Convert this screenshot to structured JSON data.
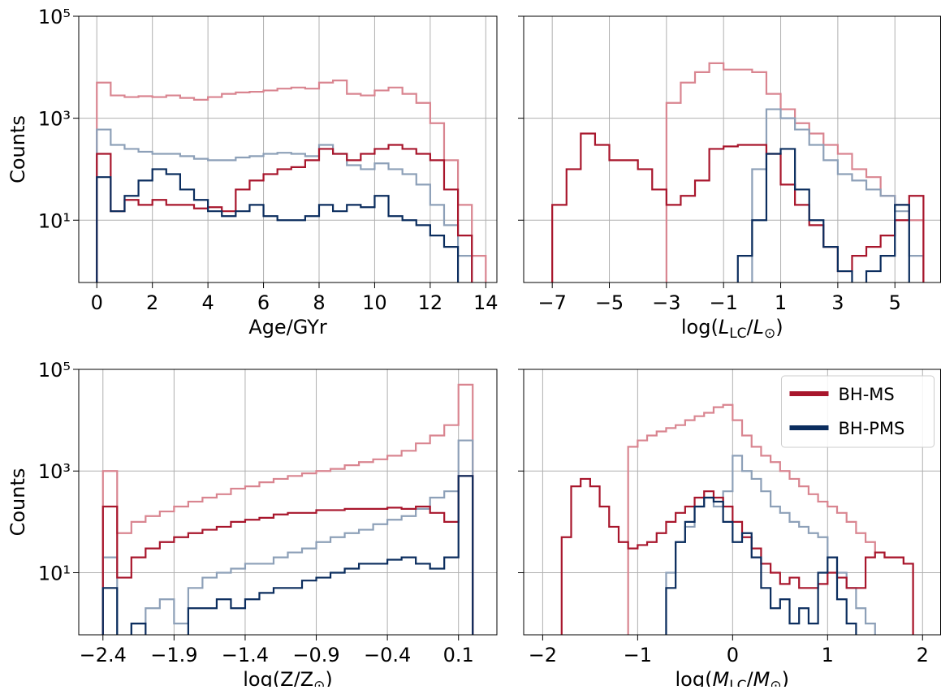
{
  "chart_data": [
    {
      "type": "histogram",
      "xlabel": [
        {
          "text": "Age/GYr"
        }
      ],
      "ylabel": "Counts",
      "log_y": true,
      "grid": true,
      "xlim": [
        -0.65,
        14.4
      ],
      "ylim": [
        0.6,
        100000
      ],
      "xticks": [
        0,
        2,
        4,
        6,
        8,
        10,
        12,
        14
      ],
      "yticks": [
        {
          "value": 10,
          "label": "10¹"
        },
        {
          "value": 1000,
          "label": "10³"
        },
        {
          "value": 100000,
          "label": "10⁵"
        }
      ],
      "bins": [
        0,
        0.5,
        1,
        1.5,
        2,
        2.5,
        3,
        3.5,
        4,
        4.5,
        5,
        5.5,
        6,
        6.5,
        7,
        7.5,
        8,
        8.5,
        9,
        9.5,
        10,
        10.5,
        11,
        11.5,
        12,
        12.5,
        13,
        13.5,
        14
      ],
      "series": [
        {
          "color": "#d98590",
          "values": [
            5000,
            2800,
            2600,
            2700,
            2600,
            2800,
            2500,
            2300,
            2600,
            3000,
            3200,
            3300,
            3500,
            3800,
            4000,
            3800,
            5000,
            5500,
            3000,
            2800,
            3500,
            4000,
            3000,
            2000,
            800,
            150,
            20,
            2
          ]
        },
        {
          "color": "#8da0b8",
          "values": [
            600,
            300,
            250,
            220,
            200,
            200,
            180,
            160,
            150,
            150,
            170,
            180,
            200,
            210,
            200,
            180,
            300,
            200,
            120,
            100,
            130,
            100,
            80,
            50,
            20,
            8,
            2,
            0
          ]
        },
        {
          "color": "#a8162c",
          "values": [
            200,
            15,
            25,
            20,
            25,
            20,
            20,
            17,
            18,
            15,
            40,
            60,
            80,
            100,
            110,
            150,
            250,
            200,
            150,
            200,
            250,
            300,
            250,
            200,
            150,
            40,
            5,
            0
          ]
        },
        {
          "color": "#0b2d5e",
          "values": [
            70,
            15,
            30,
            60,
            100,
            80,
            40,
            25,
            15,
            12,
            15,
            20,
            12,
            10,
            10,
            12,
            20,
            15,
            20,
            18,
            30,
            12,
            10,
            8,
            5,
            3,
            0,
            0
          ]
        }
      ]
    },
    {
      "type": "histogram",
      "xlabel": [
        {
          "text": "log("
        },
        {
          "text": "L",
          "italic": true
        },
        {
          "text": "LC",
          "sub": true
        },
        {
          "text": "/"
        },
        {
          "text": "L",
          "italic": true
        },
        {
          "text": "⊙",
          "sub": true
        },
        {
          "text": ")"
        }
      ],
      "log_y": true,
      "grid": true,
      "xlim": [
        -8.0,
        6.6
      ],
      "ylim": [
        0.6,
        100000
      ],
      "xticks": [
        {
          "value": -7,
          "label": "−7"
        },
        {
          "value": -5,
          "label": "−5"
        },
        {
          "value": -3,
          "label": "−3"
        },
        {
          "value": -1,
          "label": "−1"
        },
        1,
        3,
        5
      ],
      "yticks": [
        10,
        1000,
        100000
      ],
      "bins": [
        -7,
        -6.5,
        -6,
        -5.5,
        -5,
        -4.5,
        -4,
        -3.5,
        -3,
        -2.5,
        -2,
        -1.5,
        -1,
        -0.5,
        0,
        0.5,
        1,
        1.5,
        2,
        2.5,
        3,
        3.5,
        4,
        4.5,
        5,
        5.5,
        6
      ],
      "series": [
        {
          "color": "#d98590",
          "values": [
            0,
            0,
            0,
            0,
            0,
            0,
            0,
            0,
            2000,
            5000,
            8000,
            12000,
            9000,
            9000,
            8000,
            3000,
            1500,
            800,
            500,
            300,
            200,
            100,
            70,
            30,
            20,
            10
          ]
        },
        {
          "color": "#8da0b8",
          "values": [
            0,
            0,
            0,
            0,
            0,
            0,
            0,
            0,
            0,
            0,
            0,
            0,
            0,
            0,
            100,
            1500,
            1000,
            600,
            300,
            150,
            80,
            60,
            40,
            30,
            15,
            2
          ]
        },
        {
          "color": "#a8162c",
          "values": [
            20,
            100,
            500,
            300,
            150,
            150,
            100,
            40,
            20,
            30,
            60,
            250,
            280,
            300,
            300,
            200,
            50,
            20,
            8,
            3,
            1,
            2,
            3,
            5,
            10,
            30
          ]
        },
        {
          "color": "#0b2d5e",
          "values": [
            0,
            0,
            0,
            0,
            0,
            0,
            0,
            0,
            0,
            0,
            0,
            0,
            0,
            2,
            10,
            200,
            250,
            40,
            10,
            3,
            1,
            0.5,
            1,
            2,
            20,
            0
          ]
        }
      ]
    },
    {
      "type": "histogram",
      "xlabel": [
        {
          "text": "log(Z/Z"
        },
        {
          "text": "⊙",
          "sub": true
        },
        {
          "text": ")"
        }
      ],
      "ylabel": "Counts",
      "log_y": true,
      "grid": true,
      "xlim": [
        -2.57,
        0.37
      ],
      "ylim": [
        0.6,
        100000
      ],
      "xticks": [
        {
          "value": -2.4,
          "label": "−2.4"
        },
        {
          "value": -1.9,
          "label": "−1.9"
        },
        {
          "value": -1.4,
          "label": "−1.4"
        },
        {
          "value": -0.9,
          "label": "−0.9"
        },
        {
          "value": -0.4,
          "label": "−0.4"
        },
        0.1
      ],
      "yticks": [
        {
          "value": 10,
          "label": "10¹"
        },
        {
          "value": 1000,
          "label": "10³"
        },
        {
          "value": 100000,
          "label": "10⁵"
        }
      ],
      "bins": [
        -2.4,
        -2.3,
        -2.2,
        -2.1,
        -2.0,
        -1.9,
        -1.8,
        -1.7,
        -1.6,
        -1.5,
        -1.4,
        -1.3,
        -1.2,
        -1.1,
        -1.0,
        -0.9,
        -0.8,
        -0.7,
        -0.6,
        -0.5,
        -0.4,
        -0.3,
        -0.2,
        -0.1,
        0,
        0.1,
        0.2
      ],
      "series": [
        {
          "color": "#d98590",
          "values": [
            1000,
            60,
            100,
            130,
            160,
            200,
            250,
            300,
            350,
            450,
            500,
            600,
            700,
            800,
            900,
            1000,
            1100,
            1300,
            1500,
            1700,
            2000,
            2500,
            3500,
            5000,
            8000,
            50000
          ]
        },
        {
          "color": "#8da0b8",
          "values": [
            20,
            0,
            1,
            2,
            3,
            1,
            5,
            8,
            10,
            12,
            15,
            15,
            20,
            25,
            30,
            40,
            50,
            60,
            70,
            90,
            110,
            130,
            180,
            300,
            400,
            4000
          ]
        },
        {
          "color": "#a8162c",
          "values": [
            200,
            8,
            20,
            30,
            40,
            50,
            60,
            70,
            80,
            100,
            110,
            120,
            140,
            150,
            150,
            170,
            170,
            180,
            180,
            180,
            190,
            180,
            200,
            150,
            100,
            800
          ]
        },
        {
          "color": "#0b2d5e",
          "values": [
            5,
            0,
            1,
            0,
            0.5,
            0,
            2,
            2,
            3,
            2,
            3,
            4,
            5,
            5,
            7,
            8,
            10,
            12,
            15,
            15,
            18,
            20,
            15,
            12,
            20,
            800
          ]
        }
      ]
    },
    {
      "type": "histogram",
      "xlabel": [
        {
          "text": "log("
        },
        {
          "text": "M",
          "italic": true
        },
        {
          "text": "LC",
          "sub": true
        },
        {
          "text": "/"
        },
        {
          "text": "M",
          "italic": true
        },
        {
          "text": "⊙",
          "sub": true
        },
        {
          "text": ")"
        }
      ],
      "log_y": true,
      "grid": true,
      "legend": "upper right",
      "xlim": [
        -2.2,
        2.19
      ],
      "ylim": [
        0.6,
        100000
      ],
      "xticks": [
        {
          "value": -2,
          "label": "−2"
        },
        {
          "value": -1,
          "label": "−1"
        },
        0,
        1,
        2
      ],
      "yticks": [
        10,
        1000,
        100000
      ],
      "bins": [
        -1.8,
        -1.7,
        -1.6,
        -1.5,
        -1.4,
        -1.3,
        -1.2,
        -1.1,
        -1.0,
        -0.9,
        -0.8,
        -0.7,
        -0.6,
        -0.5,
        -0.4,
        -0.3,
        -0.2,
        -0.1,
        0,
        0.1,
        0.2,
        0.3,
        0.4,
        0.5,
        0.6,
        0.7,
        0.8,
        0.9,
        1.0,
        1.1,
        1.2,
        1.3,
        1.4,
        1.5,
        1.6,
        1.7,
        1.8,
        1.9
      ],
      "series": [
        {
          "color": "#d98590",
          "values": [
            0,
            0,
            0,
            0,
            0,
            0,
            0,
            3000,
            4000,
            5000,
            6000,
            7000,
            8000,
            10000,
            12000,
            14000,
            18000,
            20000,
            10000,
            5000,
            3000,
            2000,
            1500,
            1000,
            700,
            500,
            350,
            250,
            200,
            150,
            100,
            60,
            40,
            25,
            20,
            20,
            15
          ]
        },
        {
          "color": "#8da0b8",
          "values": [
            0,
            0,
            0,
            0,
            0,
            0,
            0,
            0,
            0,
            0,
            0,
            10,
            40,
            80,
            200,
            300,
            200,
            400,
            2000,
            1000,
            700,
            400,
            200,
            150,
            100,
            80,
            60,
            50,
            20,
            10,
            5,
            2,
            1,
            0.5,
            0,
            0,
            0
          ]
        },
        {
          "name": "BH-MS",
          "color": "#a8162c",
          "values": [
            50,
            500,
            700,
            500,
            200,
            80,
            40,
            30,
            35,
            40,
            60,
            100,
            150,
            200,
            300,
            400,
            300,
            200,
            100,
            50,
            30,
            15,
            10,
            6,
            8,
            5,
            5,
            6,
            10,
            8,
            5,
            5,
            20,
            25,
            20,
            20,
            15
          ]
        },
        {
          "name": "BH-PMS",
          "color": "#0b2d5e",
          "values": [
            0,
            0,
            0,
            0,
            0,
            0,
            0,
            0,
            0,
            0,
            0,
            5,
            40,
            100,
            200,
            300,
            250,
            100,
            40,
            60,
            20,
            5,
            2,
            3,
            1,
            2,
            1,
            10,
            20,
            3,
            1,
            0.5,
            0,
            0,
            0,
            0,
            0
          ]
        }
      ]
    }
  ]
}
